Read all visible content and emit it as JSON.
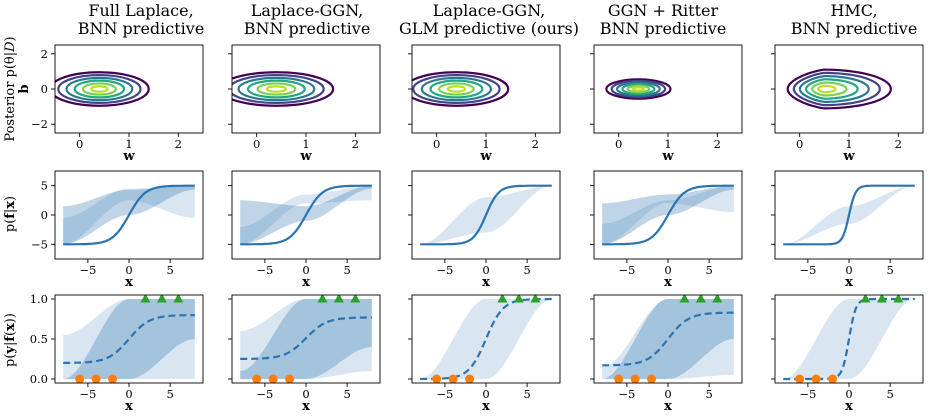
{
  "chart_data": {
    "type": "figure-grid",
    "columns": [
      {
        "title_line1": "Full Laplace,",
        "title_line2": "BNN predictive"
      },
      {
        "title_line1": "Laplace-GGN,",
        "title_line2": "BNN predictive"
      },
      {
        "title_line1": "Laplace-GGN,",
        "title_line2": "GLM predictive (ours)"
      },
      {
        "title_line1": "GGN + Ritter",
        "title_line2": "BNN predictive"
      },
      {
        "title_line1": "HMC,",
        "title_line2": "BNN predictive"
      }
    ],
    "rows": [
      {
        "type": "contour",
        "ylabel_main": "Posterior p(θ|",
        "ylabel_script": "D",
        "ylabel_close": ")",
        "ylabel_var": "b",
        "xlabel": "w",
        "xlim": [
          -0.5,
          2.5
        ],
        "ylim": [
          -2.5,
          2.5
        ],
        "xticks": [
          0,
          1,
          2
        ],
        "yticks": [
          -2,
          0,
          2
        ],
        "contour_colors": [
          "#440154",
          "#414487",
          "#2a788e",
          "#22a884",
          "#7ad151",
          "#bddf26"
        ],
        "panels": [
          {
            "center": [
              0.4,
              0.0
            ],
            "shape": "ellipse",
            "outer_radius": [
              1.0,
              0.95
            ]
          },
          {
            "center": [
              0.4,
              0.0
            ],
            "shape": "ellipse",
            "outer_radius": [
              1.15,
              0.95
            ]
          },
          {
            "center": [
              0.4,
              0.0
            ],
            "shape": "ellipse",
            "outer_radius": [
              1.05,
              0.95
            ]
          },
          {
            "center": [
              0.4,
              0.0
            ],
            "shape": "ellipse",
            "outer_radius": [
              0.65,
              0.55
            ]
          },
          {
            "center": [
              0.5,
              0.0
            ],
            "shape": "banana",
            "outer_radius": [
              1.35,
              1.1
            ]
          }
        ]
      },
      {
        "type": "area",
        "ylabel_main": "p(",
        "ylabel_bold": "f",
        "ylabel_mid": "|",
        "ylabel_bold2": "x",
        "ylabel_close": ")",
        "xlabel": "x",
        "xlim": [
          -9,
          9
        ],
        "ylim": [
          -7.5,
          7.5
        ],
        "xticks": [
          -5,
          0,
          5
        ],
        "yticks": [
          -5,
          0,
          5
        ],
        "x_range": [
          -8,
          8
        ],
        "panels": [
          {
            "mean_scale": 1.0,
            "bands": [
              {
                "lo": [
                  -5,
                  2.5,
                  -0.5
                ],
                "hi": [
                  -0.5,
                  4.5,
                  5
                ]
              },
              {
                "lo": [
                  -5,
                  0,
                  4.3
                ],
                "hi": [
                  1.5,
                  4.3,
                  5
                ]
              }
            ]
          },
          {
            "mean_scale": 1.0,
            "bands": [
              {
                "lo": [
                  -5,
                  2.0,
                  2.5
                ],
                "hi": [
                  -2.0,
                  3.5,
                  5
                ]
              },
              {
                "lo": [
                  -5,
                  -1.0,
                  4.5
                ],
                "hi": [
                  2.5,
                  1.5,
                  5
                ]
              }
            ]
          },
          {
            "mean_scale": 1.3,
            "bands": [
              {
                "lo": [
                  -5,
                  -3.0,
                  5
                ],
                "hi": [
                  -5,
                  3.0,
                  5
                ]
              }
            ]
          },
          {
            "mean_scale": 1.0,
            "bands": [
              {
                "lo": [
                  -5,
                  2.0,
                  0.5
                ],
                "hi": [
                  -1.5,
                  2.5,
                  5
                ]
              },
              {
                "lo": [
                  -5,
                  0.0,
                  4.3
                ],
                "hi": [
                  2.0,
                  3.5,
                  5
                ]
              }
            ]
          },
          {
            "mean_scale": 2.5,
            "bands": [
              {
                "lo": [
                  -5,
                  -1.5,
                  5
                ],
                "hi": [
                  -5,
                  1.5,
                  5
                ]
              }
            ]
          }
        ]
      },
      {
        "type": "classification",
        "ylabel_main": "p(",
        "ylabel_bold": "y",
        "ylabel_mid": "|",
        "ylabel_bold2": "f",
        "ylabel_open2": "(",
        "ylabel_bold3": "x",
        "ylabel_close": "))",
        "xlabel": "x",
        "xlim": [
          -9,
          9
        ],
        "ylim": [
          -0.05,
          1.05
        ],
        "xticks": [
          -5,
          0,
          5
        ],
        "yticks": [
          "0.0",
          "0.5",
          "1.0"
        ],
        "ytick_values": [
          0.0,
          0.5,
          1.0
        ],
        "class0_points_x": [
          -6,
          -4,
          -2
        ],
        "class0_y": 0.0,
        "class1_points_x": [
          2,
          4,
          6
        ],
        "class1_y": 1.0,
        "class0_color": "#ff7f0e",
        "class1_color": "#2ca02c",
        "panels": [
          {
            "dashed_low": 0.2,
            "dashed_high": 0.8,
            "dashed_slope": 0.5,
            "bands": [
              {
                "lo": [
                  0.0,
                  0.0,
                  0.0
                ],
                "hi": [
                  0.55,
                  1.0,
                  1.0
                ]
              },
              {
                "lo": [
                  0.0,
                  0.0,
                  0.5
                ],
                "hi": [
                  0.0,
                  1.0,
                  1.0
                ]
              }
            ]
          },
          {
            "dashed_low": 0.25,
            "dashed_high": 0.77,
            "dashed_slope": 0.5,
            "bands": [
              {
                "lo": [
                  0.0,
                  0.0,
                  0.1
                ],
                "hi": [
                  0.6,
                  1.0,
                  1.0
                ]
              },
              {
                "lo": [
                  0.0,
                  0.0,
                  0.4
                ],
                "hi": [
                  0.1,
                  1.0,
                  1.0
                ]
              }
            ]
          },
          {
            "dashed_low": 0.0,
            "dashed_high": 1.0,
            "dashed_slope": 0.6,
            "bands": [
              {
                "lo": [
                  0.0,
                  0.0,
                  1.0
                ],
                "hi": [
                  0.0,
                  1.0,
                  1.0
                ]
              }
            ]
          },
          {
            "dashed_low": 0.17,
            "dashed_high": 0.83,
            "dashed_slope": 0.5,
            "bands": [
              {
                "lo": [
                  0.0,
                  0.0,
                  0.05
                ],
                "hi": [
                  0.15,
                  1.0,
                  1.0
                ]
              },
              {
                "lo": [
                  0.0,
                  0.0,
                  0.5
                ],
                "hi": [
                  0.0,
                  1.0,
                  1.0
                ]
              }
            ]
          },
          {
            "dashed_low": 0.0,
            "dashed_high": 1.0,
            "dashed_slope": 1.5,
            "bands": [
              {
                "lo": [
                  0.0,
                  0.0,
                  1.0
                ],
                "hi": [
                  0.0,
                  1.0,
                  1.0
                ]
              }
            ]
          }
        ]
      }
    ],
    "line_color": "#2b74b1",
    "band_inner_color": "#2b74b1",
    "band_outer_color": "#2b74b1"
  }
}
